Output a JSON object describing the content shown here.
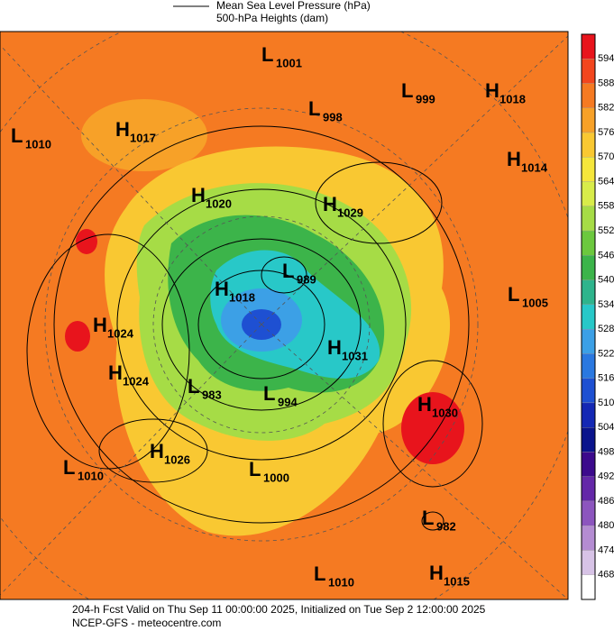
{
  "header": {
    "mslp_label": "Mean Sea Level Pressure (hPa)",
    "height_label": "500-hPa Heights (dam)"
  },
  "colorbar": {
    "labels": [
      594,
      588,
      582,
      576,
      570,
      564,
      558,
      552,
      546,
      540,
      534,
      528,
      522,
      516,
      510,
      504,
      498,
      492,
      486,
      480,
      474,
      468
    ],
    "colors": [
      "#e8141c",
      "#f2461e",
      "#f57a22",
      "#f7a128",
      "#f9c832",
      "#f5e63c",
      "#d8ec4a",
      "#a6dc46",
      "#6cc83e",
      "#3cb44a",
      "#2eb48c",
      "#28c8c8",
      "#3ca0e6",
      "#2a78e0",
      "#1e50d2",
      "#1428b4",
      "#0a148c",
      "#3c0a8c",
      "#6428a8",
      "#8c55be",
      "#b48cd2",
      "#d7c3e6",
      "#ffffff"
    ]
  },
  "centers": [
    {
      "type": "L",
      "value": "1001"
    },
    {
      "type": "L",
      "value": "998"
    },
    {
      "type": "L",
      "value": "999"
    },
    {
      "type": "H",
      "value": "1018"
    },
    {
      "type": "L",
      "value": "1010"
    },
    {
      "type": "H",
      "value": "1017"
    },
    {
      "type": "H",
      "value": "1014"
    },
    {
      "type": "H",
      "value": "1020"
    },
    {
      "type": "H",
      "value": "1029"
    },
    {
      "type": "L",
      "value": "989"
    },
    {
      "type": "L",
      "value": "1005"
    },
    {
      "type": "H",
      "value": "1018"
    },
    {
      "type": "H",
      "value": "1024"
    },
    {
      "type": "H",
      "value": "1031"
    },
    {
      "type": "H",
      "value": "1024"
    },
    {
      "type": "L",
      "value": "983"
    },
    {
      "type": "L",
      "value": "994"
    },
    {
      "type": "H",
      "value": "1030"
    },
    {
      "type": "H",
      "value": "1026"
    },
    {
      "type": "L",
      "value": "1010"
    },
    {
      "type": "L",
      "value": "1000"
    },
    {
      "type": "L",
      "value": "982"
    },
    {
      "type": "L",
      "value": "1010"
    },
    {
      "type": "H",
      "value": "1015"
    }
  ],
  "footer": {
    "line1": "204-h Fcst Valid on Thu Sep 11 00:00:00 2025, Initialized on Tue Sep  2 12:00:00 2025",
    "line2": "NCEP-GFS - meteocentre.com"
  }
}
